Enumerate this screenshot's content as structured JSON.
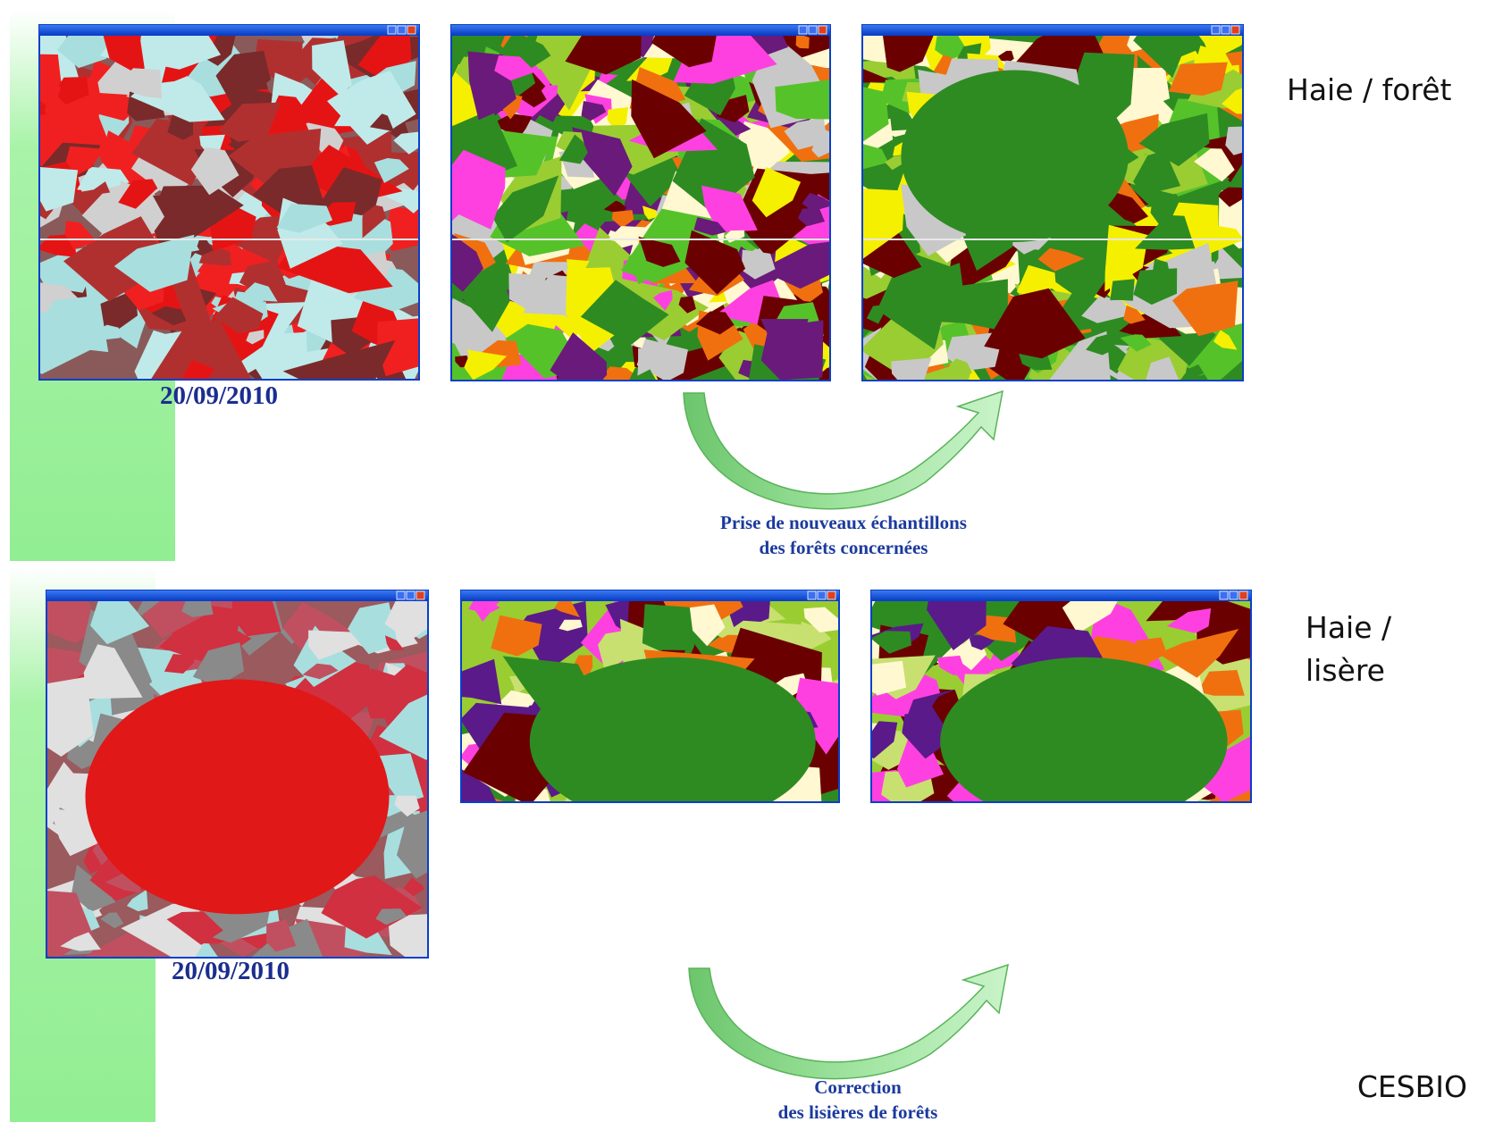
{
  "top": {
    "label": "Haie / forêt",
    "date": "20/09/2010",
    "caption": [
      "Prise de nouveaux échantillons",
      "des forêts concernées"
    ]
  },
  "bottom": {
    "label": [
      "Haie /",
      "lisère"
    ],
    "date": "20/09/2010",
    "caption": [
      "Correction",
      "des lisières de forêts"
    ]
  },
  "footer": "CESBIO"
}
